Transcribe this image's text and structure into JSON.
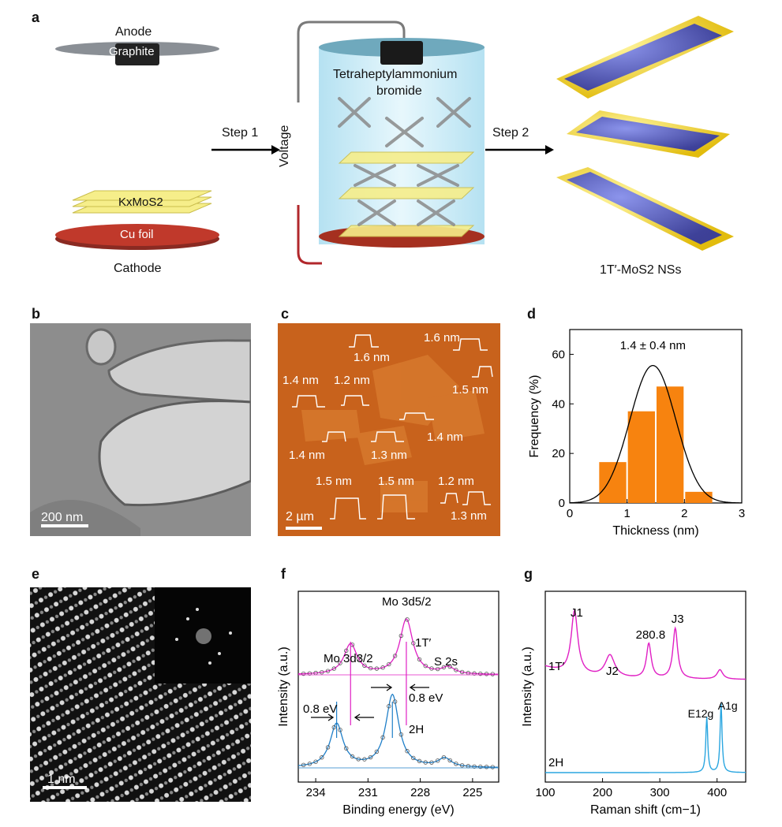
{
  "panels": {
    "a": {
      "letter": "a",
      "anode": "Anode",
      "graphite": "Graphite",
      "kxmos2": "KxMoS2",
      "cu_foil": "Cu foil",
      "cathode": "Cathode",
      "step1": "Step 1",
      "voltage": "Voltage",
      "tha_line1": "Tetraheptylammonium",
      "tha_line2": "bromide",
      "step2": "Step 2",
      "product": "1T′-MoS2 NSs"
    },
    "b": {
      "letter": "b",
      "scalebar": "200 nm"
    },
    "c": {
      "letter": "c",
      "scalebar": "2 µm",
      "heights": [
        "1.6 nm",
        "1.6 nm",
        "1.5 nm",
        "1.4 nm",
        "1.2 nm",
        "1.4 nm",
        "1.4 nm",
        "1.3 nm",
        "1.5 nm",
        "1.5 nm",
        "1.2 nm",
        "1.3 nm"
      ]
    },
    "d": {
      "letter": "d"
    },
    "e": {
      "letter": "e",
      "scalebar": "1 nm"
    },
    "f": {
      "letter": "f"
    },
    "g": {
      "letter": "g"
    }
  },
  "colors": {
    "hist_bar": "#f7830f",
    "afm_bg": "#c8621c",
    "tem_bg": "#9a9a9a",
    "pink": "#e01fc4",
    "blue": "#1f7fc8",
    "raman_blue": "#2aa6e0",
    "cathode_red": "#c0392b",
    "layer_yellow": "#f6ee8a",
    "cylinder": "#cdeef8"
  },
  "chart_data": [
    {
      "panel": "d",
      "type": "bar",
      "title": "",
      "annotation": "1.4 ± 0.4 nm",
      "xlabel": "Thickness (nm)",
      "ylabel": "Frequency (%)",
      "x_ticks": [
        "0",
        "1",
        "2",
        "3"
      ],
      "y_ticks": [
        "0",
        "20",
        "40",
        "60"
      ],
      "xlim": [
        0,
        3
      ],
      "ylim": [
        0,
        70
      ],
      "bins": [
        [
          0.5,
          1.0
        ],
        [
          1.0,
          1.5
        ],
        [
          1.5,
          2.0
        ],
        [
          2.0,
          2.5
        ]
      ],
      "values": [
        16.5,
        37,
        47,
        4.5
      ],
      "fit": {
        "type": "gaussian",
        "mean": 1.45,
        "sigma": 0.4,
        "peak": 55.5
      }
    },
    {
      "panel": "f",
      "type": "line",
      "xlabel": "Binding energy (eV)",
      "ylabel": "Intensity (a.u.)",
      "x_ticks": [
        "234",
        "231",
        "228",
        "225"
      ],
      "xlim": [
        235,
        223.5
      ],
      "series": [
        {
          "name": "1T′",
          "peaks": [
            232.0,
            228.8,
            226.4
          ]
        },
        {
          "name": "2H",
          "peaks": [
            232.8,
            229.6,
            226.6
          ]
        }
      ],
      "annotations": [
        "Mo 3d3/2",
        "Mo 3d5/2",
        "1T′",
        "S 2s",
        "0.8 eV",
        "0.8 eV",
        "2H"
      ]
    },
    {
      "panel": "g",
      "type": "line",
      "xlabel": "Raman shift (cm−1)",
      "ylabel": "Intensity (a.u.)",
      "x_ticks": [
        "100",
        "200",
        "300",
        "400"
      ],
      "xlim": [
        100,
        450
      ],
      "series": [
        {
          "name": "1T′",
          "peaks": [
            151,
            213,
            280.8,
            327,
            405
          ]
        },
        {
          "name": "2H",
          "peaks": [
            382,
            407
          ]
        }
      ],
      "annotations": [
        "J1",
        "J2",
        "280.8",
        "J3",
        "E12g",
        "A1g"
      ]
    }
  ]
}
